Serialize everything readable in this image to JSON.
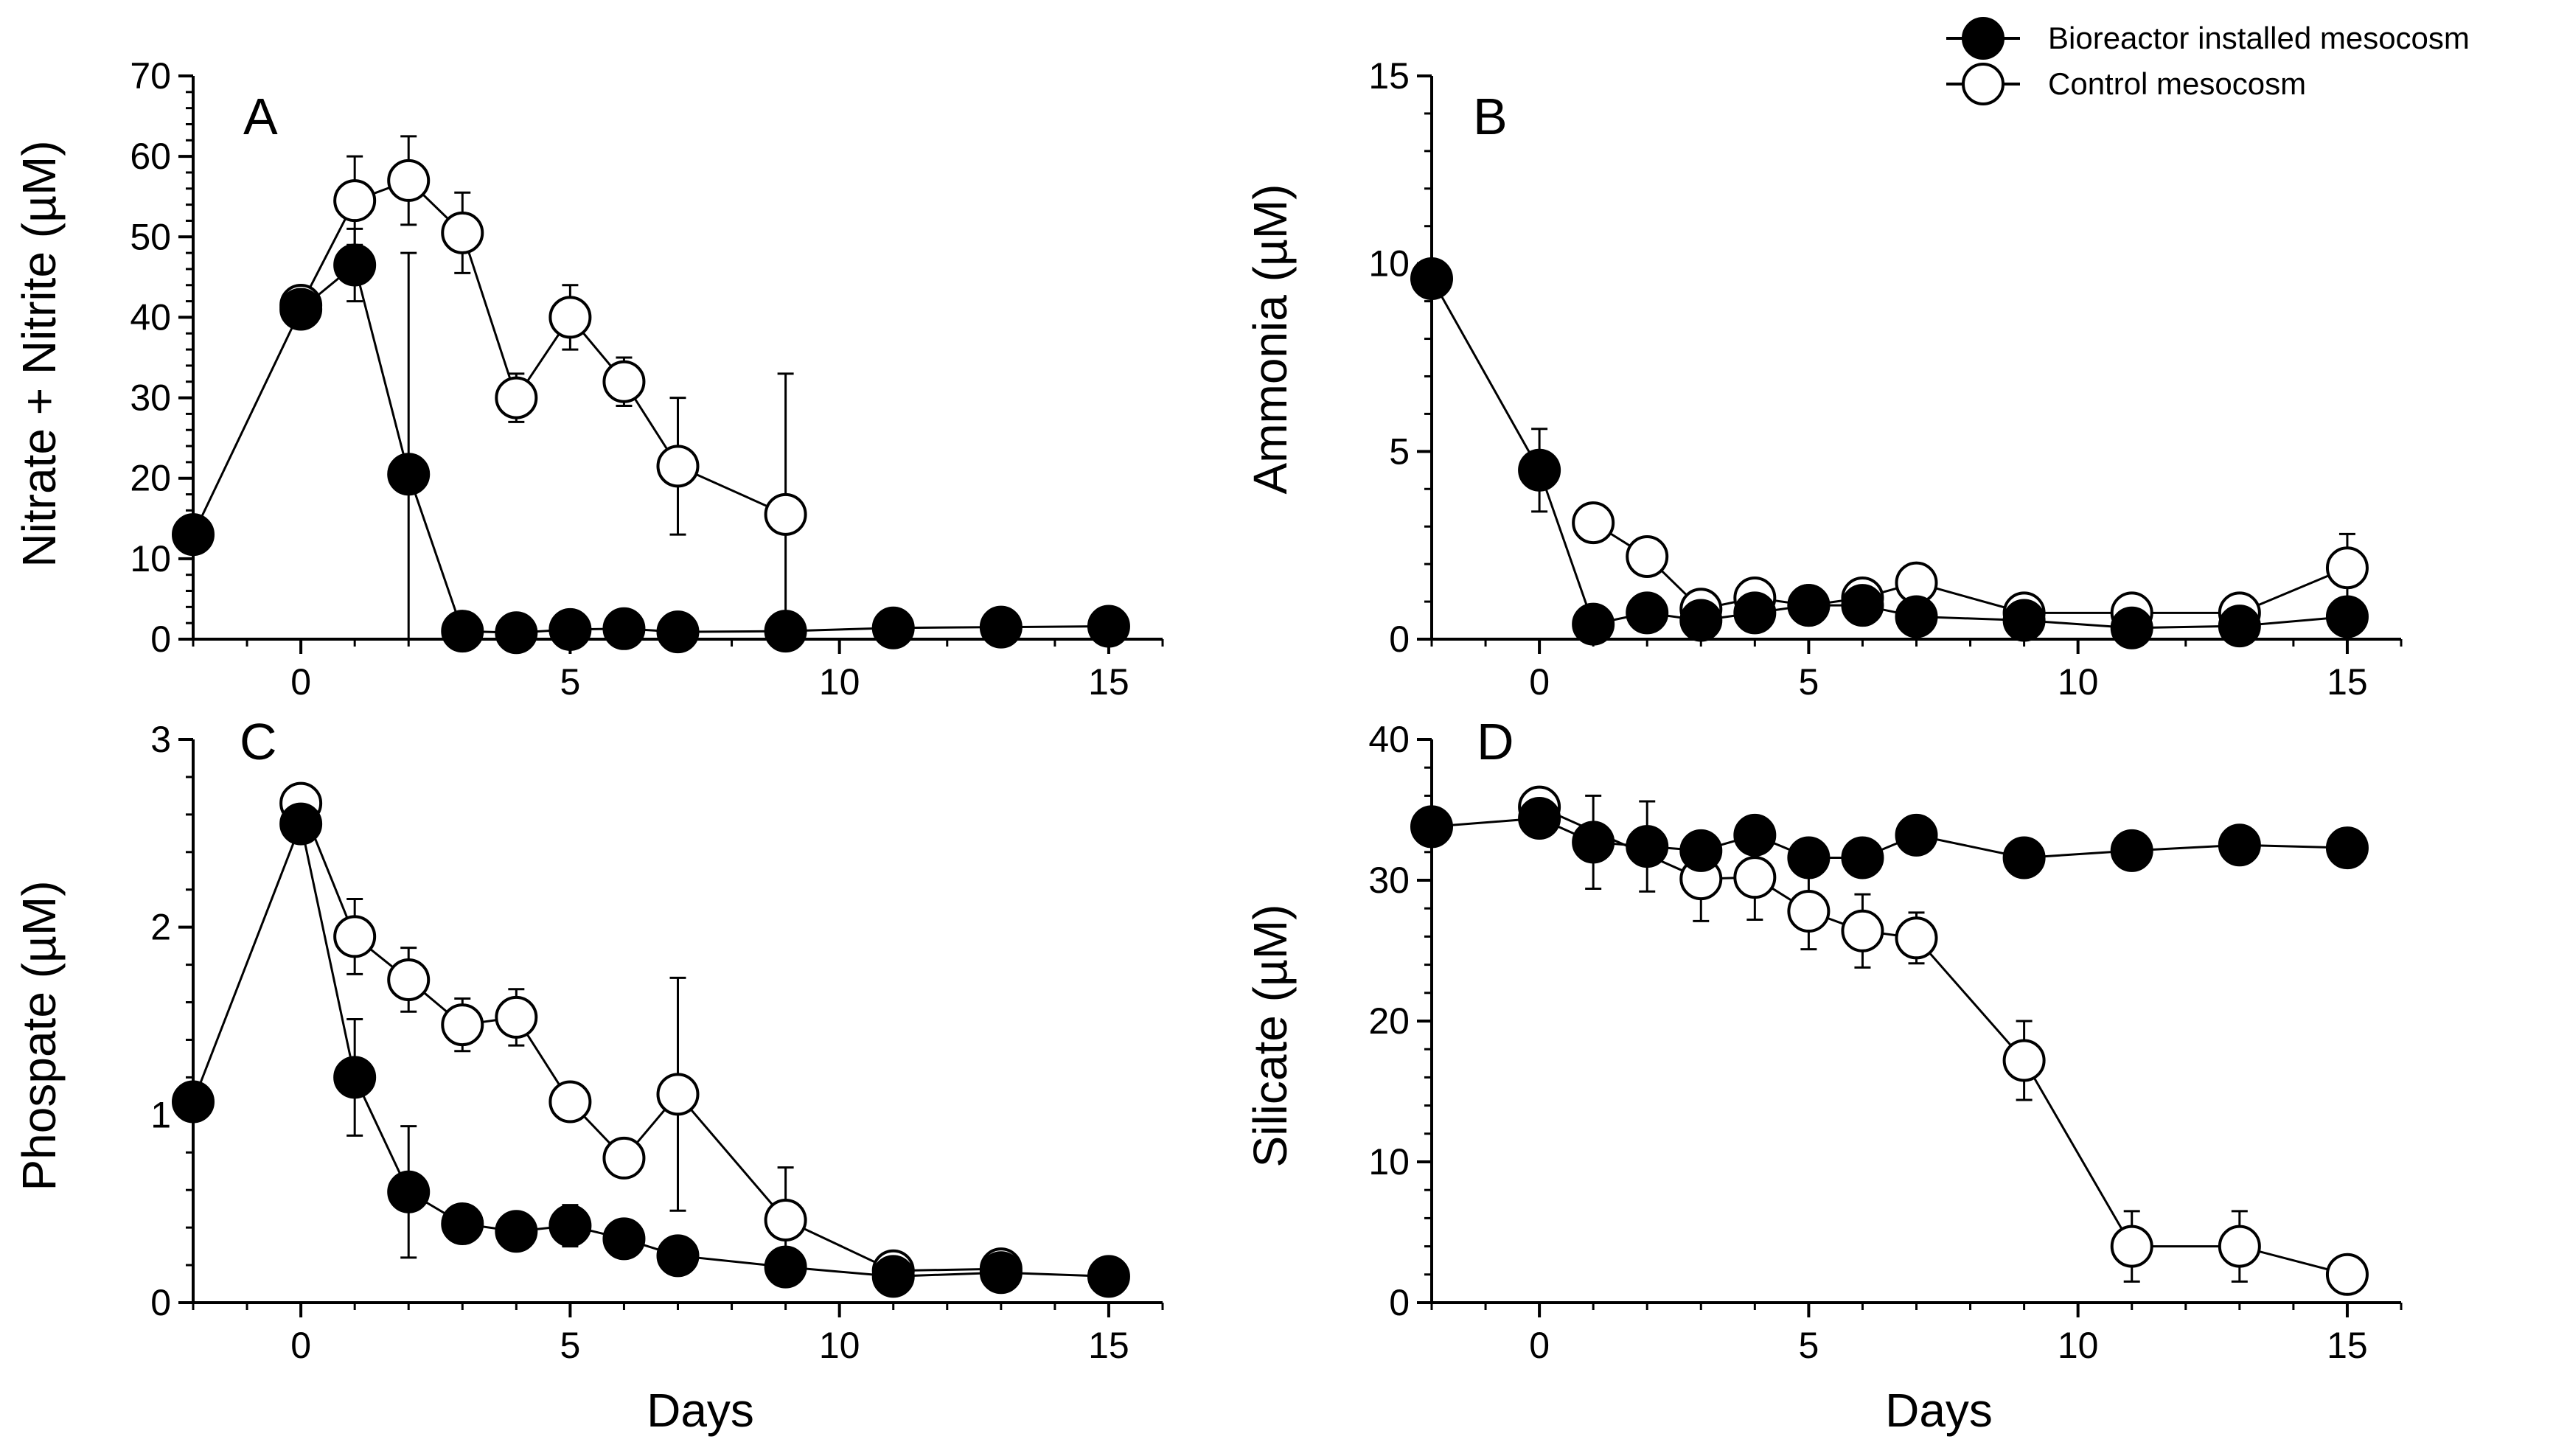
{
  "legend": {
    "items": [
      {
        "label": "Bioreactor installed mesocosm",
        "marker": "filled"
      },
      {
        "label": "Control mesocosm",
        "marker": "open"
      }
    ]
  },
  "colors": {
    "line": "#000000",
    "filled_marker": "#000000",
    "open_marker": "#ffffff"
  },
  "chart_data": [
    {
      "type": "line",
      "panel": "A",
      "xlabel": "",
      "ylabel": "Nitrate + Nitrite (µM)",
      "xlim": [
        -2,
        16
      ],
      "ylim": [
        0,
        70
      ],
      "xticks": [
        0,
        5,
        10,
        15
      ],
      "yticks": [
        0,
        10,
        20,
        30,
        40,
        50,
        60,
        70
      ],
      "series": [
        {
          "name": "Bioreactor installed mesocosm",
          "marker": "filled",
          "x": [
            -2,
            0,
            1,
            2,
            3,
            4,
            5,
            6,
            7,
            9,
            11,
            13,
            15
          ],
          "y": [
            13,
            41,
            46.5,
            20.5,
            1,
            0.8,
            1.2,
            1.3,
            0.9,
            1.0,
            1.4,
            1.5,
            1.6
          ],
          "err": [
            0,
            0,
            4.5,
            27.5,
            0,
            0,
            0,
            0,
            0,
            0,
            0,
            0,
            0
          ]
        },
        {
          "name": "Control mesocosm",
          "marker": "open",
          "x": [
            0,
            1,
            2,
            3,
            4,
            5,
            6,
            7,
            9
          ],
          "y": [
            41.5,
            54.5,
            57,
            50.5,
            30,
            40,
            32,
            21.5,
            15.5
          ],
          "err": [
            1,
            5.5,
            5.5,
            5,
            3,
            4,
            3,
            8.5,
            17.5
          ]
        }
      ]
    },
    {
      "type": "line",
      "panel": "B",
      "xlabel": "",
      "ylabel": "Ammonia (µM)",
      "xlim": [
        -2,
        16
      ],
      "ylim": [
        0,
        15
      ],
      "xticks": [
        0,
        5,
        10,
        15
      ],
      "yticks": [
        0,
        5,
        10,
        15
      ],
      "series": [
        {
          "name": "Bioreactor installed mesocosm",
          "marker": "filled",
          "x": [
            -2,
            0,
            1,
            2,
            3,
            4,
            5,
            6,
            7,
            9,
            11,
            13,
            15
          ],
          "y": [
            9.6,
            4.5,
            0.4,
            0.7,
            0.5,
            0.7,
            0.9,
            0.9,
            0.6,
            0.5,
            0.3,
            0.35,
            0.6
          ],
          "err": [
            0.5,
            1.1,
            0,
            0,
            0,
            0,
            0,
            0,
            0,
            0,
            0,
            0,
            0
          ]
        },
        {
          "name": "Control mesocosm",
          "marker": "open",
          "x": [
            1,
            2,
            3,
            4,
            5,
            6,
            7,
            9,
            11,
            13,
            15
          ],
          "y": [
            3.1,
            2.2,
            0.8,
            1.1,
            0.9,
            1.1,
            1.5,
            0.7,
            0.7,
            0.7,
            1.9
          ],
          "err": [
            0.3,
            0.3,
            0,
            0.2,
            0,
            0.3,
            0.2,
            0,
            0,
            0,
            0.9
          ]
        }
      ]
    },
    {
      "type": "line",
      "panel": "C",
      "xlabel": "Days",
      "ylabel": "Phospate (µM)",
      "xlim": [
        -2,
        16
      ],
      "ylim": [
        0,
        3
      ],
      "xticks": [
        0,
        5,
        10,
        15
      ],
      "yticks": [
        0,
        1,
        2,
        3
      ],
      "series": [
        {
          "name": "Bioreactor installed mesocosm",
          "marker": "filled",
          "x": [
            -2,
            0,
            1,
            2,
            3,
            4,
            5,
            6,
            7,
            9,
            11,
            13,
            15
          ],
          "y": [
            1.07,
            2.55,
            1.2,
            0.59,
            0.42,
            0.38,
            0.41,
            0.34,
            0.25,
            0.19,
            0.14,
            0.16,
            0.14
          ],
          "err": [
            0,
            0,
            0.31,
            0.35,
            0.05,
            0.07,
            0.11,
            0,
            0,
            0,
            0,
            0,
            0
          ]
        },
        {
          "name": "Control mesocosm",
          "marker": "open",
          "x": [
            0,
            1,
            2,
            3,
            4,
            5,
            6,
            7,
            9,
            11,
            13
          ],
          "y": [
            2.66,
            1.95,
            1.72,
            1.48,
            1.52,
            1.07,
            0.77,
            1.11,
            0.44,
            0.17,
            0.18
          ],
          "err": [
            0.05,
            0.2,
            0.17,
            0.14,
            0.15,
            0.07,
            0.07,
            0.62,
            0.28,
            0.04,
            0.03
          ]
        }
      ]
    },
    {
      "type": "line",
      "panel": "D",
      "xlabel": "Days",
      "ylabel": "Silicate (µM)",
      "xlim": [
        -2,
        16
      ],
      "ylim": [
        0,
        40
      ],
      "xticks": [
        0,
        5,
        10,
        15
      ],
      "yticks": [
        0,
        10,
        20,
        30,
        40
      ],
      "series": [
        {
          "name": "Bioreactor installed mesocosm",
          "marker": "filled",
          "x": [
            -2,
            0,
            1,
            2,
            3,
            4,
            5,
            6,
            7,
            9,
            11,
            13,
            15
          ],
          "y": [
            33.8,
            34.4,
            32.7,
            32.4,
            32.1,
            33.2,
            31.6,
            31.6,
            33.2,
            31.6,
            32.1,
            32.5,
            32.3
          ],
          "err": [
            0.5,
            1.2,
            3.3,
            3.2,
            0,
            0.5,
            0,
            0.4,
            0.5,
            0,
            0,
            0,
            0
          ]
        },
        {
          "name": "Control mesocosm",
          "marker": "open",
          "x": [
            0,
            3,
            4,
            5,
            6,
            7,
            9,
            11,
            13,
            15
          ],
          "y": [
            35.2,
            30.1,
            30.2,
            27.8,
            26.4,
            25.9,
            17.2,
            4.0,
            4.0,
            2.0
          ],
          "err": [
            1,
            3,
            3,
            2.7,
            2.6,
            1.8,
            2.8,
            2.5,
            2.5,
            1.2
          ]
        }
      ]
    }
  ]
}
